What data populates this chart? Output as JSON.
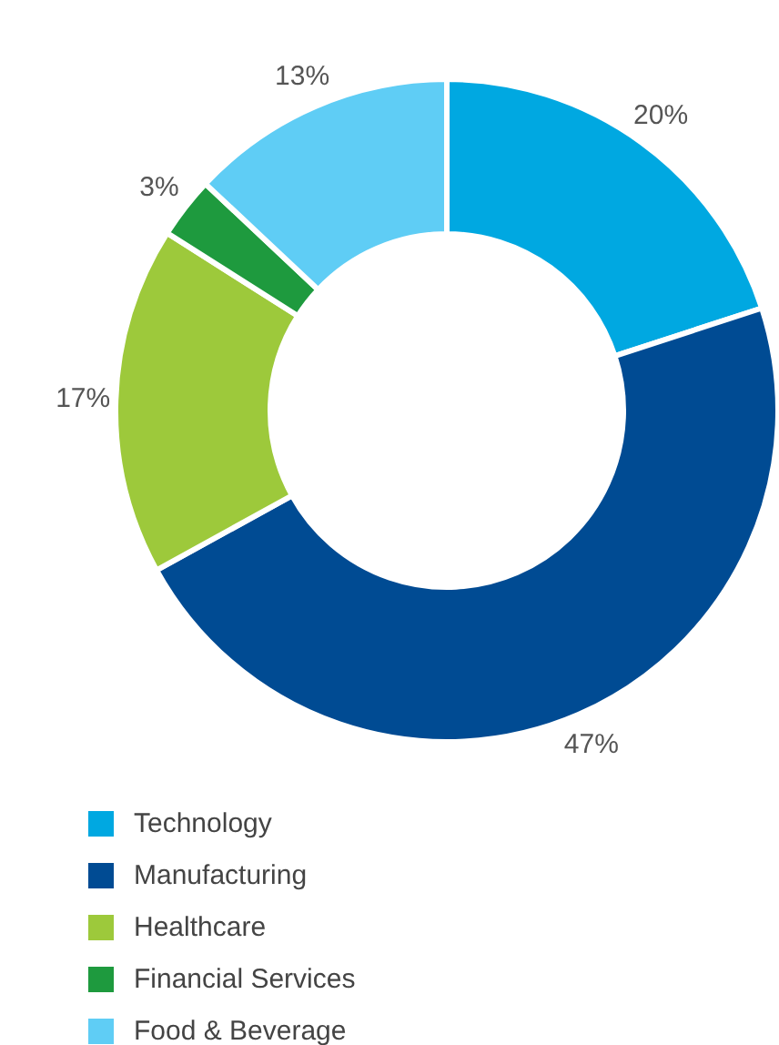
{
  "chart_data": {
    "type": "donut",
    "categories": [
      "Technology",
      "Manufacturing",
      "Healthcare",
      "Financial Services",
      "Food & Beverage"
    ],
    "values": [
      20,
      47,
      17,
      3,
      13
    ],
    "colors": [
      "#00a8e1",
      "#004b93",
      "#9dc93b",
      "#1e9a3e",
      "#5fcdf5"
    ],
    "value_labels": [
      "20%",
      "47%",
      "17%",
      "3%",
      "13%"
    ],
    "legend": "bottom left"
  }
}
